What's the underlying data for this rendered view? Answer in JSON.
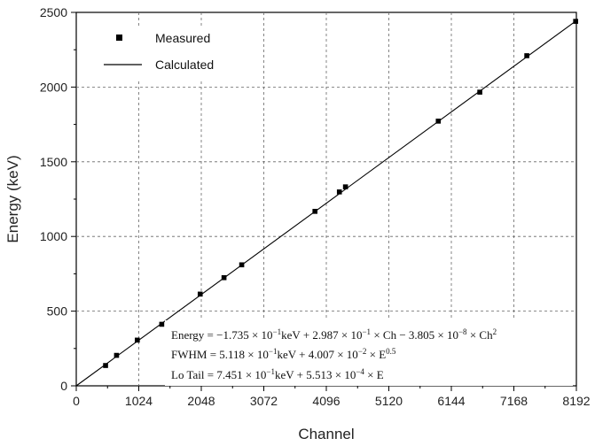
{
  "chart_data": {
    "type": "scatter",
    "xlabel": "Channel",
    "ylabel": "Energy (keV)",
    "xlim": [
      0,
      8192
    ],
    "ylim": [
      0,
      2500
    ],
    "xticks": [
      0,
      1024,
      2048,
      3072,
      4096,
      5120,
      6144,
      7168,
      8192
    ],
    "yticks": [
      0,
      500,
      1000,
      1500,
      2000,
      2500
    ],
    "grid": true,
    "legend": {
      "placement": "top-left",
      "entries": [
        "Measured",
        "Calculated"
      ]
    },
    "series": [
      {
        "name": "Measured",
        "kind": "points",
        "marker": "square",
        "color": "#000000",
        "x": [
          480,
          660,
          1000,
          1400,
          2030,
          2420,
          2710,
          3910,
          4310,
          4410,
          5930,
          6610,
          7380,
          8180
        ],
        "y": [
          136,
          204,
          306,
          412,
          614,
          724,
          810,
          1168,
          1298,
          1332,
          1772,
          1966,
          2210,
          2440
        ]
      },
      {
        "name": "Calculated",
        "kind": "line",
        "color": "#000000",
        "x": [
          0,
          8192
        ],
        "y": [
          0,
          2445
        ]
      }
    ],
    "annotations": [
      {
        "lead": "Energy = −1.735 × 10",
        "sup": "−1",
        "tail": "keV + 2.987 × 10",
        "sup2": "−1",
        "tail2": " × Ch − 3.805 × 10",
        "sup3": "−8",
        "tail3": " × Ch",
        "sup4": "2"
      },
      {
        "lead": "FWHM = 5.118 × 10",
        "sup": "−1",
        "tail": "keV + 4.007 × 10",
        "sup2": "−2",
        "tail2": " × E",
        "sup3": "0.5"
      },
      {
        "lead": "Lo Tail = 7.451 × 10",
        "sup": "−1",
        "tail": "keV + 5.513 × 10",
        "sup2": "−4",
        "tail2": " × E"
      }
    ]
  }
}
